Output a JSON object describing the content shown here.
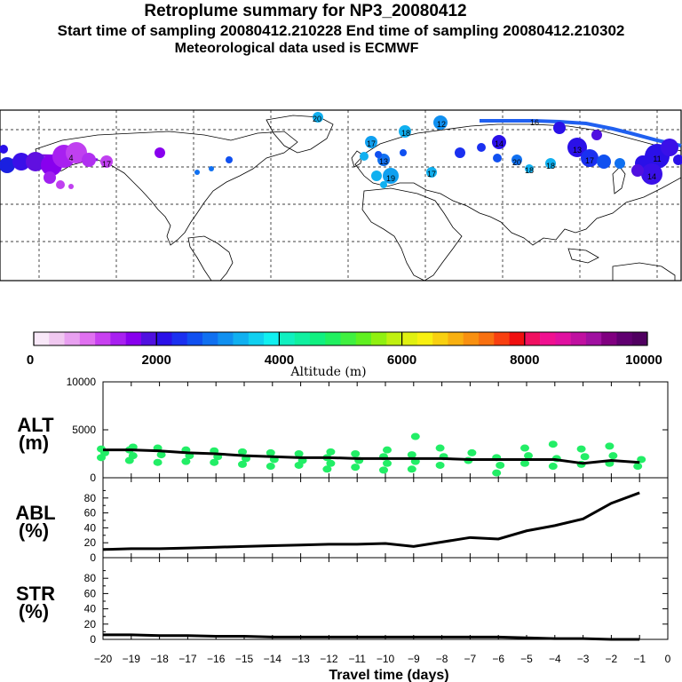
{
  "header": {
    "title": "Retroplume summary for NP3_20080412",
    "sampling": "Start time of sampling 20080412.210228     End time of sampling 20080412.210302",
    "met": "Meteorological data used is ECMWF"
  },
  "colors": {
    "line": "#000000",
    "scatter": "#22ee66",
    "map_border": "#000000"
  },
  "colorbar": {
    "ticks": [
      "0",
      "2000",
      "4000",
      "6000",
      "8000",
      "10000"
    ],
    "label": "Altitude (m)",
    "colors": [
      "#f8e8f8",
      "#f0c8f0",
      "#e8a0f0",
      "#e070f0",
      "#c840f0",
      "#a820f0",
      "#8800ee",
      "#5010e0",
      "#2a10e8",
      "#1a30f0",
      "#1050f0",
      "#1070f0",
      "#1090f0",
      "#10b0f0",
      "#10d0f0",
      "#10f0f0",
      "#10f0c0",
      "#10f0a0",
      "#10f080",
      "#20f060",
      "#40f040",
      "#60f020",
      "#90f010",
      "#c0f010",
      "#e0f010",
      "#f8f010",
      "#f8d010",
      "#f8b010",
      "#f89010",
      "#f87010",
      "#f84010",
      "#f01010",
      "#f01060",
      "#f01090",
      "#e010a0",
      "#c010a0",
      "#a010a0",
      "#800080",
      "#600070",
      "#500060"
    ]
  },
  "chart_data": [
    {
      "type": "line",
      "panel": "ALT",
      "ylabel": "ALT (m)",
      "ylabel_top": "ALT",
      "ylabel_bottom": "(m)",
      "ylim": [
        0,
        10000
      ],
      "yticks": [
        "10000",
        "5000",
        "0"
      ],
      "x": [
        -20,
        -19,
        -18,
        -17,
        -16,
        -15,
        -14,
        -13,
        -12,
        -11,
        -10,
        -9,
        -8,
        -7,
        -6,
        -5,
        -4,
        -3,
        -2,
        -1
      ],
      "values": [
        2900,
        2900,
        2800,
        2600,
        2500,
        2300,
        2200,
        2100,
        2100,
        2000,
        2000,
        2000,
        2000,
        1900,
        1900,
        1900,
        1900,
        1500,
        1800,
        1600
      ],
      "scatter": [
        {
          "x": -20,
          "y": [
            2100,
            2600,
            3000
          ]
        },
        {
          "x": -19,
          "y": [
            1800,
            2300,
            2900,
            3200
          ]
        },
        {
          "x": -18,
          "y": [
            1600,
            2400,
            3100
          ]
        },
        {
          "x": -17,
          "y": [
            1700,
            2300,
            2900
          ]
        },
        {
          "x": -16,
          "y": [
            1600,
            2200,
            2800
          ]
        },
        {
          "x": -15,
          "y": [
            1400,
            2000,
            2700
          ]
        },
        {
          "x": -14,
          "y": [
            1200,
            1900,
            2600
          ]
        },
        {
          "x": -13,
          "y": [
            1300,
            1800,
            2500
          ]
        },
        {
          "x": -12,
          "y": [
            900,
            1500,
            2100,
            2700
          ]
        },
        {
          "x": -11,
          "y": [
            1100,
            1800,
            2500
          ]
        },
        {
          "x": -10,
          "y": [
            800,
            1500,
            2200,
            2900
          ]
        },
        {
          "x": -9,
          "y": [
            900,
            1700,
            2400,
            4300
          ]
        },
        {
          "x": -8,
          "y": [
            1300,
            2200,
            3100
          ]
        },
        {
          "x": -7,
          "y": [
            1800,
            2600
          ]
        },
        {
          "x": -6,
          "y": [
            500,
            1300,
            2100
          ]
        },
        {
          "x": -5,
          "y": [
            1500,
            2300,
            3100
          ]
        },
        {
          "x": -4,
          "y": [
            1200,
            2000,
            3500
          ]
        },
        {
          "x": -3,
          "y": [
            1400,
            2200,
            3000
          ]
        },
        {
          "x": -2,
          "y": [
            1500,
            2300,
            3300
          ]
        },
        {
          "x": -1,
          "y": [
            1200,
            1900
          ]
        }
      ]
    },
    {
      "type": "line",
      "panel": "ABL",
      "ylabel": "ABL (%)",
      "ylabel_top": "ABL",
      "ylabel_bottom": "(%)",
      "ylim": [
        0,
        100
      ],
      "yticks": [
        "80",
        "60",
        "40",
        "20",
        "0"
      ],
      "x": [
        -20,
        -19,
        -18,
        -17,
        -16,
        -15,
        -14,
        -13,
        -12,
        -11,
        -10,
        -9,
        -8,
        -7,
        -6,
        -5,
        -4,
        -3,
        -2,
        -1
      ],
      "values": [
        11,
        12,
        12,
        13,
        14,
        15,
        16,
        17,
        18,
        18,
        19,
        15,
        21,
        27,
        25,
        36,
        43,
        52,
        73,
        87
      ]
    },
    {
      "type": "line",
      "panel": "STR",
      "ylabel": "STR (%)",
      "ylabel_top": "STR",
      "ylabel_bottom": "(%)",
      "ylim": [
        0,
        100
      ],
      "yticks": [
        "80",
        "60",
        "40",
        "20",
        "0"
      ],
      "x": [
        -20,
        -19,
        -18,
        -17,
        -16,
        -15,
        -14,
        -13,
        -12,
        -11,
        -10,
        -9,
        -8,
        -7,
        -6,
        -5,
        -4,
        -3,
        -2,
        -1
      ],
      "values": [
        6,
        6,
        5,
        5,
        4,
        4,
        3,
        3,
        3,
        3,
        3,
        3,
        3,
        3,
        3,
        2,
        1,
        1,
        0,
        0
      ],
      "xlabel": "Travel time (days)",
      "xticks": [
        "−20",
        "−19",
        "−18",
        "−17",
        "−16",
        "−15",
        "−14",
        "−13",
        "−12",
        "−11",
        "−10",
        "−9",
        "−8",
        "−7",
        "−6",
        "−5",
        "−4",
        "−3",
        "−2",
        "−1",
        "0"
      ]
    }
  ],
  "map": {
    "labels": [
      "20",
      "18",
      "12",
      "17",
      "13",
      "19",
      "17",
      "20",
      "18",
      "14",
      "13",
      "17",
      "11",
      "14",
      "18",
      "4",
      "17",
      "16"
    ]
  }
}
